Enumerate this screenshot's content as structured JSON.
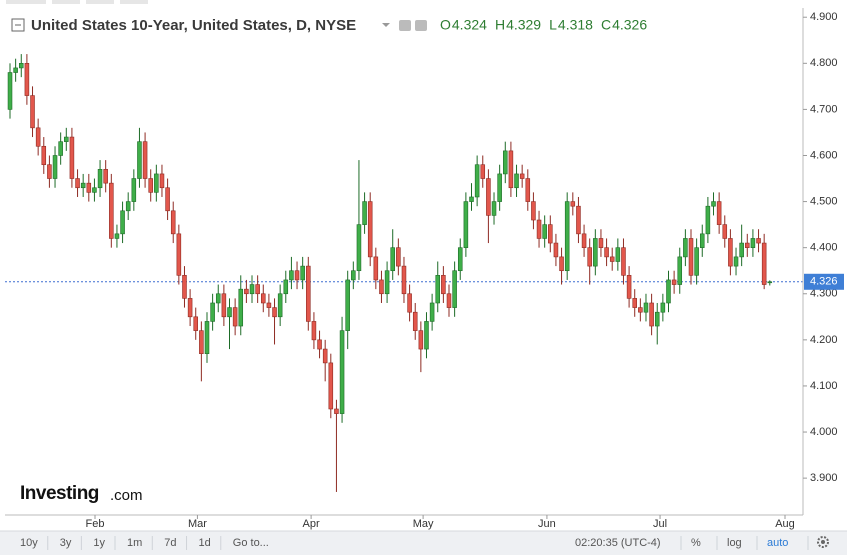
{
  "chart_data": {
    "type": "candlestick",
    "title": "United States 10-Year, United States, D, NYSE",
    "ohlc_labels": [
      "O",
      "H",
      "L",
      "C"
    ],
    "up_color": "#3fae49",
    "down_color": "#e2574c",
    "open": [
      4.7,
      4.78,
      4.79,
      4.8,
      4.73,
      4.66,
      4.62,
      4.58,
      4.55,
      4.6,
      4.63,
      4.64,
      4.55,
      4.53,
      4.54,
      4.52,
      4.53,
      4.57,
      4.54,
      4.42,
      4.43,
      4.48,
      4.5,
      4.55,
      4.63,
      4.55,
      4.52,
      4.56,
      4.53,
      4.48,
      4.43,
      4.34,
      4.29,
      4.25,
      4.22,
      4.17,
      4.24,
      4.28,
      4.3,
      4.25,
      4.27,
      4.23,
      4.31,
      4.3,
      4.32,
      4.3,
      4.28,
      4.27,
      4.25,
      4.3,
      4.33,
      4.35,
      4.33,
      4.36,
      4.24,
      4.2,
      4.18,
      4.15,
      4.05,
      4.04,
      4.22,
      4.33,
      4.35,
      4.45,
      4.5,
      4.38,
      4.33,
      4.3,
      4.35,
      4.4,
      4.36,
      4.3,
      4.26,
      4.22,
      4.18,
      4.24,
      4.28,
      4.34,
      4.3,
      4.27,
      4.35,
      4.4,
      4.5,
      4.51,
      4.58,
      4.55,
      4.47,
      4.5,
      4.56,
      4.61,
      4.53,
      4.56,
      4.55,
      4.5,
      4.46,
      4.42,
      4.45,
      4.41,
      4.38,
      4.35,
      4.5,
      4.49,
      4.43,
      4.4,
      4.36,
      4.42,
      4.4,
      4.38,
      4.37,
      4.4,
      4.34,
      4.29,
      4.27,
      4.26,
      4.28,
      4.23,
      4.26,
      4.28,
      4.33,
      4.32,
      4.38,
      4.42,
      4.34,
      4.4,
      4.43,
      4.49,
      4.5,
      4.45,
      4.42,
      4.36,
      4.38,
      4.41,
      4.4,
      4.42,
      4.41,
      4.324
    ],
    "high": [
      4.8,
      4.81,
      4.82,
      4.82,
      4.75,
      4.68,
      4.64,
      4.6,
      4.62,
      4.65,
      4.66,
      4.66,
      4.57,
      4.56,
      4.56,
      4.55,
      4.59,
      4.59,
      4.56,
      4.45,
      4.5,
      4.52,
      4.57,
      4.66,
      4.65,
      4.57,
      4.58,
      4.58,
      4.55,
      4.5,
      4.45,
      4.36,
      4.31,
      4.27,
      4.24,
      4.26,
      4.3,
      4.32,
      4.32,
      4.29,
      4.29,
      4.34,
      4.33,
      4.34,
      4.34,
      4.32,
      4.3,
      4.29,
      4.32,
      4.35,
      4.38,
      4.37,
      4.38,
      4.38,
      4.26,
      4.22,
      4.2,
      4.17,
      4.07,
      4.25,
      4.35,
      4.37,
      4.59,
      4.52,
      4.52,
      4.4,
      4.35,
      4.37,
      4.44,
      4.42,
      4.38,
      4.32,
      4.28,
      4.24,
      4.26,
      4.3,
      4.37,
      4.36,
      4.32,
      4.37,
      4.42,
      4.52,
      4.54,
      4.6,
      4.6,
      4.57,
      4.52,
      4.58,
      4.63,
      4.63,
      4.58,
      4.58,
      4.57,
      4.52,
      4.48,
      4.47,
      4.47,
      4.43,
      4.4,
      4.52,
      4.52,
      4.51,
      4.45,
      4.42,
      4.44,
      4.44,
      4.42,
      4.4,
      4.42,
      4.42,
      4.36,
      4.31,
      4.29,
      4.3,
      4.3,
      4.28,
      4.3,
      4.35,
      4.35,
      4.4,
      4.44,
      4.44,
      4.42,
      4.45,
      4.51,
      4.52,
      4.52,
      4.47,
      4.44,
      4.4,
      4.45,
      4.43,
      4.44,
      4.44,
      4.43,
      4.329
    ],
    "low": [
      4.68,
      4.76,
      4.77,
      4.71,
      4.64,
      4.6,
      4.56,
      4.53,
      4.53,
      4.58,
      4.61,
      4.53,
      4.51,
      4.51,
      4.5,
      4.5,
      4.51,
      4.52,
      4.4,
      4.4,
      4.41,
      4.46,
      4.48,
      4.53,
      4.53,
      4.5,
      4.5,
      4.51,
      4.46,
      4.41,
      4.32,
      4.27,
      4.23,
      4.2,
      4.11,
      4.15,
      4.22,
      4.26,
      4.23,
      4.18,
      4.21,
      4.21,
      4.28,
      4.28,
      4.28,
      4.26,
      4.25,
      4.19,
      4.23,
      4.28,
      4.31,
      4.31,
      4.31,
      4.22,
      4.18,
      4.16,
      4.11,
      4.03,
      3.87,
      4.02,
      4.18,
      4.31,
      4.33,
      4.43,
      4.36,
      4.31,
      4.28,
      4.28,
      4.33,
      4.34,
      4.28,
      4.24,
      4.2,
      4.13,
      4.16,
      4.22,
      4.26,
      4.28,
      4.25,
      4.25,
      4.33,
      4.38,
      4.48,
      4.49,
      4.53,
      4.41,
      4.45,
      4.48,
      4.54,
      4.51,
      4.51,
      4.53,
      4.48,
      4.44,
      4.4,
      4.4,
      4.39,
      4.36,
      4.32,
      4.33,
      4.47,
      4.41,
      4.38,
      4.32,
      4.34,
      4.38,
      4.36,
      4.35,
      4.35,
      4.32,
      4.27,
      4.25,
      4.24,
      4.24,
      4.21,
      4.19,
      4.24,
      4.26,
      4.3,
      4.3,
      4.36,
      4.32,
      4.32,
      4.38,
      4.41,
      4.47,
      4.43,
      4.4,
      4.34,
      4.34,
      4.36,
      4.38,
      4.38,
      4.39,
      4.31,
      4.318
    ],
    "close": [
      4.78,
      4.79,
      4.8,
      4.73,
      4.66,
      4.62,
      4.58,
      4.55,
      4.6,
      4.63,
      4.64,
      4.55,
      4.53,
      4.54,
      4.52,
      4.53,
      4.57,
      4.54,
      4.42,
      4.43,
      4.48,
      4.5,
      4.55,
      4.63,
      4.55,
      4.52,
      4.56,
      4.53,
      4.48,
      4.43,
      4.34,
      4.29,
      4.25,
      4.22,
      4.17,
      4.24,
      4.28,
      4.3,
      4.25,
      4.27,
      4.23,
      4.31,
      4.3,
      4.32,
      4.3,
      4.28,
      4.27,
      4.25,
      4.3,
      4.33,
      4.35,
      4.33,
      4.36,
      4.24,
      4.2,
      4.18,
      4.15,
      4.05,
      4.04,
      4.22,
      4.33,
      4.35,
      4.45,
      4.5,
      4.38,
      4.33,
      4.3,
      4.35,
      4.4,
      4.36,
      4.3,
      4.26,
      4.22,
      4.18,
      4.24,
      4.28,
      4.34,
      4.3,
      4.27,
      4.35,
      4.4,
      4.5,
      4.51,
      4.58,
      4.55,
      4.47,
      4.5,
      4.56,
      4.61,
      4.53,
      4.56,
      4.55,
      4.5,
      4.46,
      4.42,
      4.45,
      4.41,
      4.38,
      4.35,
      4.5,
      4.49,
      4.43,
      4.4,
      4.36,
      4.42,
      4.4,
      4.38,
      4.37,
      4.4,
      4.34,
      4.29,
      4.27,
      4.26,
      4.28,
      4.23,
      4.26,
      4.28,
      4.33,
      4.32,
      4.38,
      4.42,
      4.34,
      4.4,
      4.43,
      4.49,
      4.5,
      4.45,
      4.42,
      4.36,
      4.38,
      4.41,
      4.4,
      4.42,
      4.41,
      4.32,
      4.326
    ],
    "xlim": [
      -0.89,
      140.9
    ],
    "xticks": [
      {
        "value": 15.1,
        "label": "Feb"
      },
      {
        "value": 33.3,
        "label": "Mar"
      },
      {
        "value": 53.5,
        "label": "Apr"
      },
      {
        "value": 73.4,
        "label": "May"
      },
      {
        "value": 95.4,
        "label": "Jun"
      },
      {
        "value": 115.5,
        "label": "Jul"
      },
      {
        "value": 137.7,
        "label": "Aug"
      }
    ],
    "ylim": [
      3.82,
      4.92
    ],
    "yticks": [
      {
        "value": 3.9,
        "label": "3.900"
      },
      {
        "value": 4.0,
        "label": "4.000"
      },
      {
        "value": 4.1,
        "label": "4.100"
      },
      {
        "value": 4.2,
        "label": "4.200"
      },
      {
        "value": 4.3,
        "label": "4.300"
      },
      {
        "value": 4.4,
        "label": "4.400"
      },
      {
        "value": 4.5,
        "label": "4.500"
      },
      {
        "value": 4.6,
        "label": "4.600"
      },
      {
        "value": 4.7,
        "label": "4.700"
      },
      {
        "value": 4.8,
        "label": "4.800"
      },
      {
        "value": 4.9,
        "label": "4.900"
      }
    ],
    "logo": [
      "Investing",
      ".com"
    ],
    "toolbar": {
      "ranges": [
        "10y",
        "3y",
        "1y",
        "1m",
        "7d",
        "1d"
      ],
      "goto": "Go to...",
      "time": "02:20:35 (UTC-4)",
      "options": [
        "%",
        "log",
        "auto"
      ]
    }
  }
}
